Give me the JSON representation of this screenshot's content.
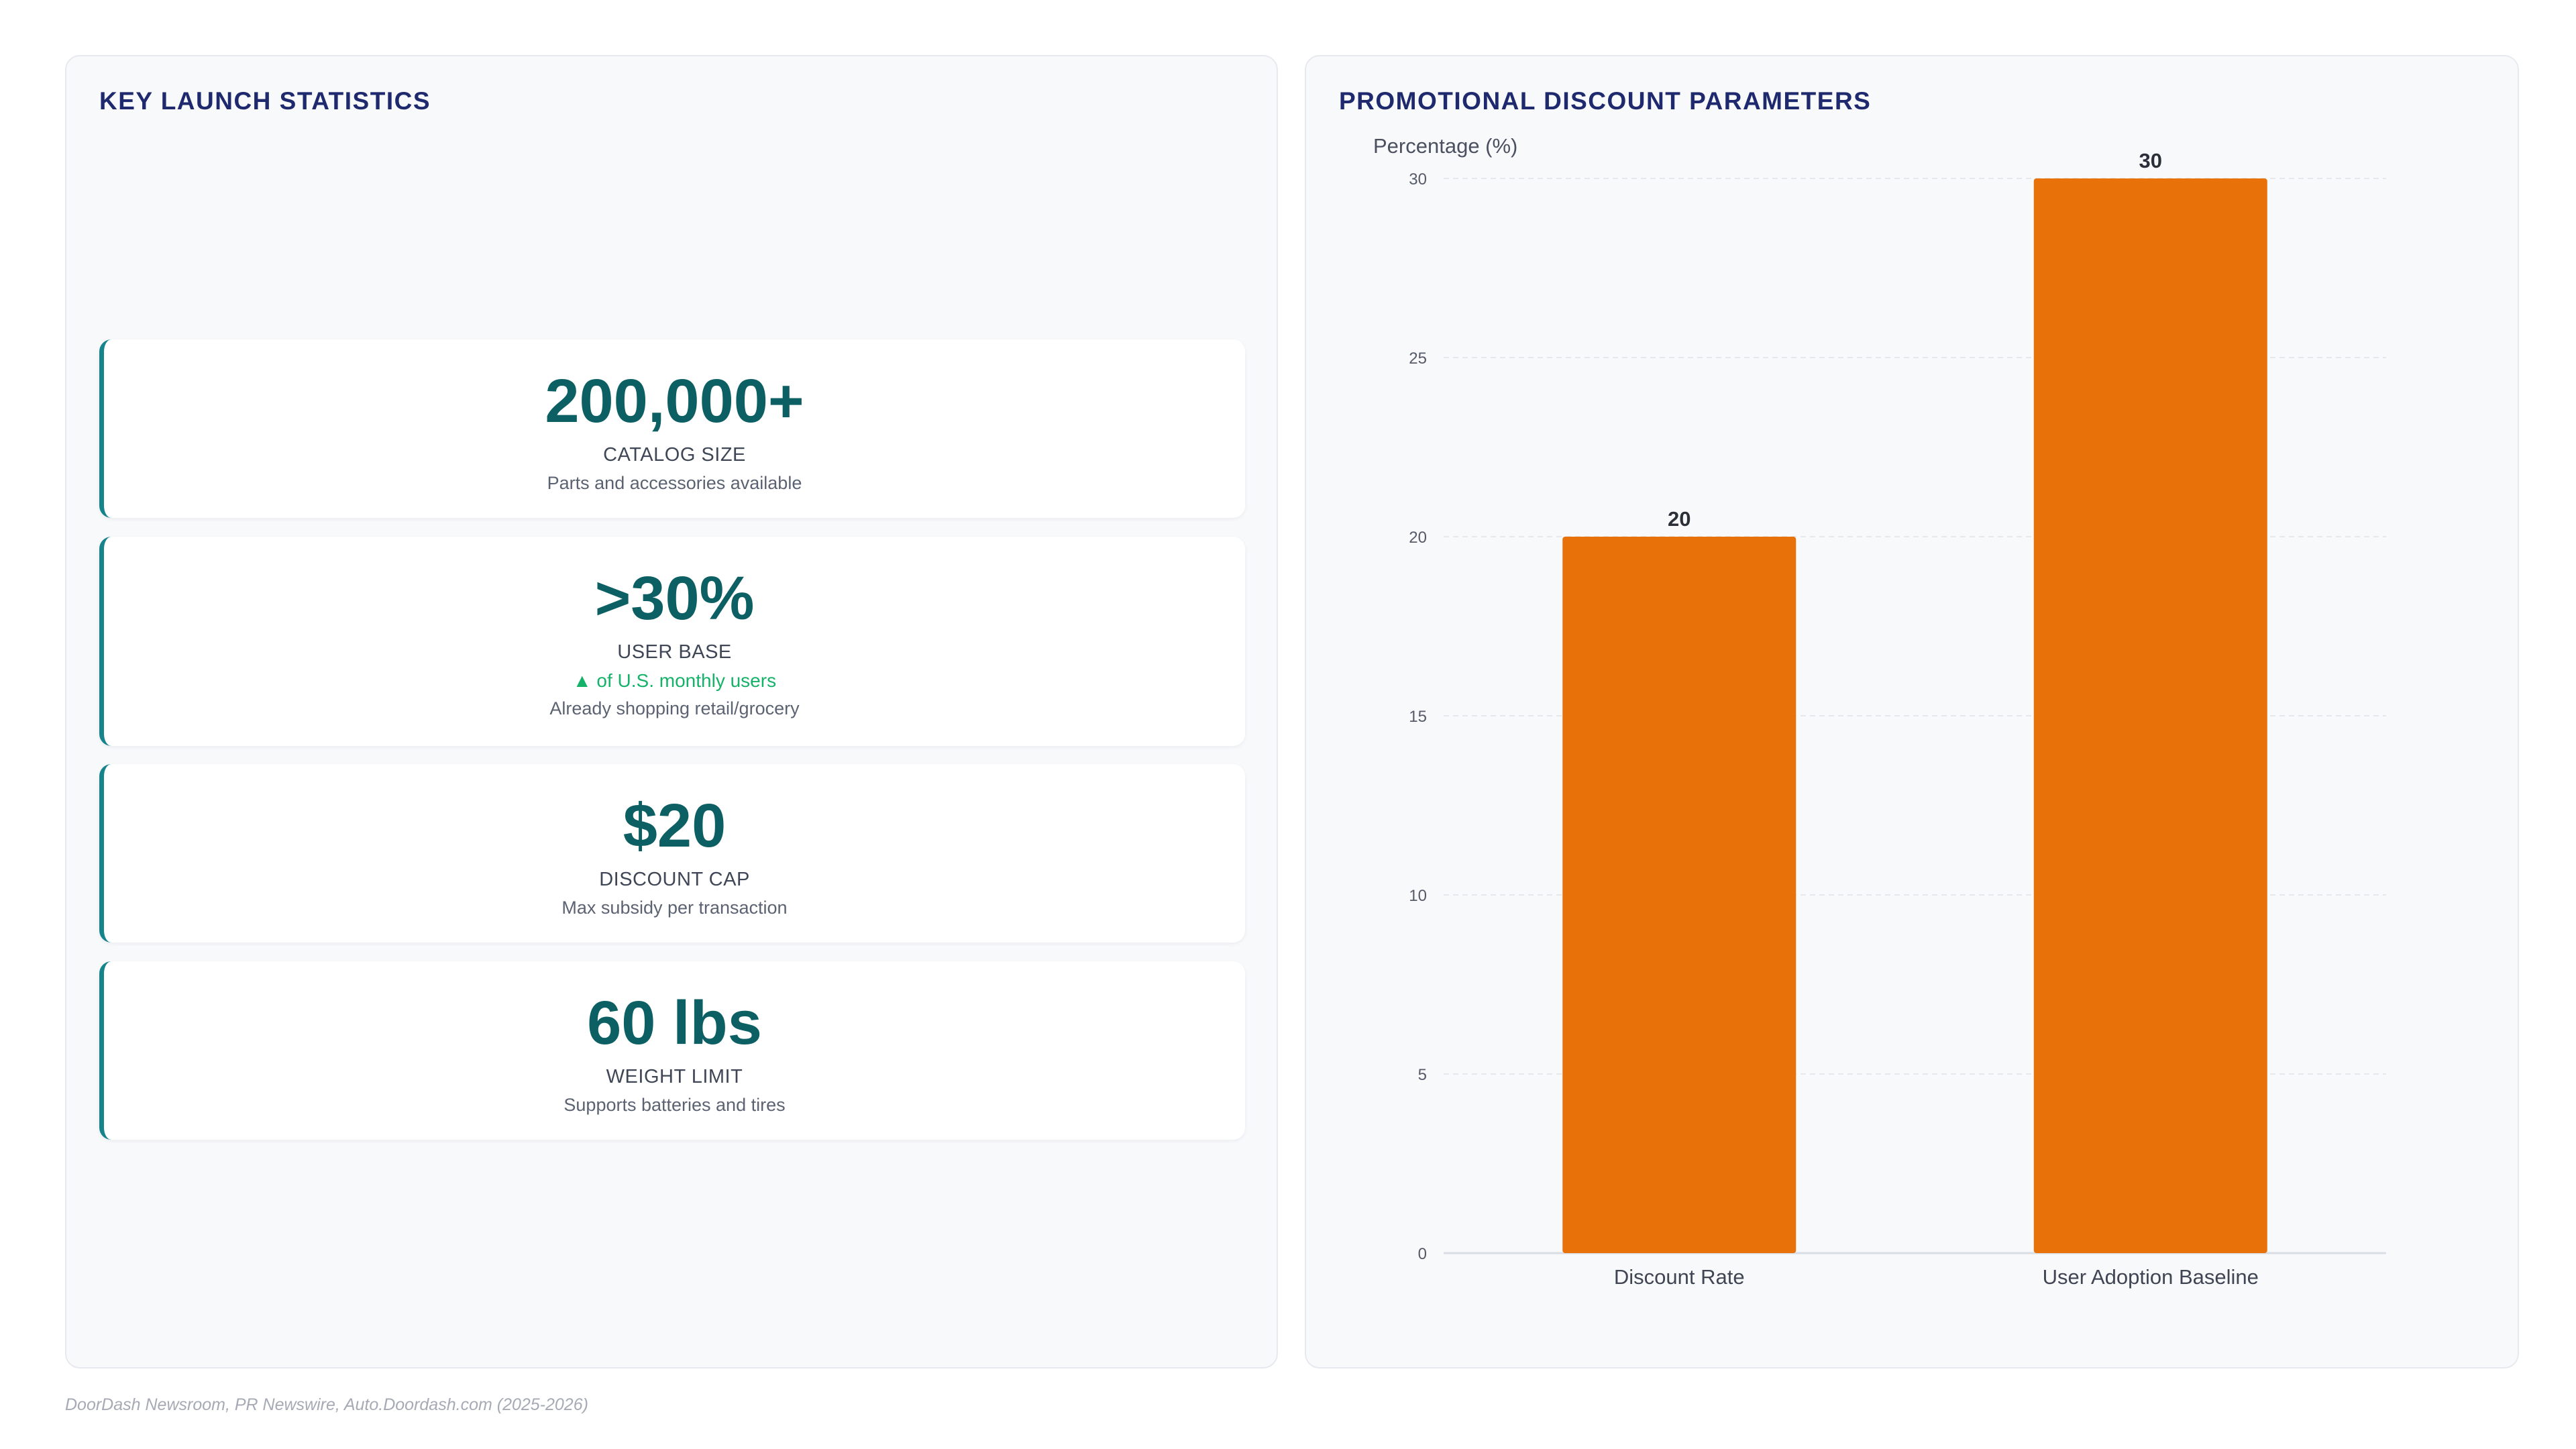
{
  "left_panel": {
    "title": "KEY LAUNCH STATISTICS",
    "stats": [
      {
        "value": "200,000+",
        "label": "CATALOG SIZE",
        "trend": "",
        "desc": "Parts and accessories available"
      },
      {
        "value": ">30%",
        "label": "USER BASE",
        "trend": "▲ of U.S. monthly users",
        "desc": "Already shopping retail/grocery"
      },
      {
        "value": "$20",
        "label": "DISCOUNT CAP",
        "trend": "",
        "desc": "Max subsidy per transaction"
      },
      {
        "value": "60 lbs",
        "label": "WEIGHT LIMIT",
        "trend": "",
        "desc": "Supports batteries and tires"
      }
    ]
  },
  "right_panel": {
    "title": "PROMOTIONAL DISCOUNT PARAMETERS"
  },
  "chart_data": {
    "type": "bar",
    "title": "PROMOTIONAL DISCOUNT PARAMETERS",
    "ylabel": "Percentage (%)",
    "xlabel": "",
    "categories": [
      "Discount Rate",
      "User Adoption Baseline"
    ],
    "values": [
      20,
      30
    ],
    "ylim": [
      0,
      30
    ],
    "yticks": [
      0,
      5,
      10,
      15,
      20,
      25,
      30
    ],
    "grid": true,
    "bar_color": "#e8710a",
    "data_labels": [
      "20",
      "30"
    ]
  },
  "footer": {
    "source": "DoorDash Newsroom, PR Newswire, Auto.Doordash.com (2025-2026)"
  }
}
